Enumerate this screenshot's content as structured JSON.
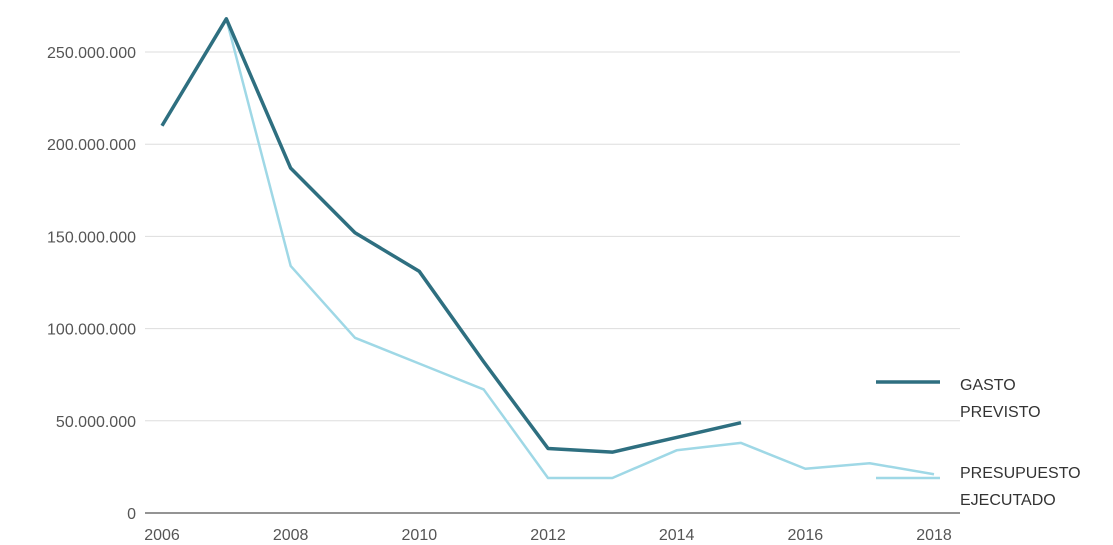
{
  "chart_data": {
    "type": "line",
    "x": [
      2006,
      2007,
      2008,
      2009,
      2010,
      2011,
      2012,
      2013,
      2014,
      2015,
      2016,
      2017,
      2018
    ],
    "x_ticks": [
      "2006",
      "2008",
      "2010",
      "2012",
      "2014",
      "2016",
      "2018"
    ],
    "y_ticks": [
      "0",
      "50.000.000",
      "100.000.000",
      "150.000.000",
      "200.000.000",
      "250.000.000"
    ],
    "ylim": [
      0,
      250000000
    ],
    "xlim": [
      2006,
      2018
    ],
    "grid": true,
    "legend_position": "right",
    "series": [
      {
        "name_lines": [
          "GASTO",
          "PREVISTO"
        ],
        "color": "#2e6f80",
        "values": [
          210000000,
          268000000,
          187000000,
          152000000,
          131000000,
          82000000,
          35000000,
          33000000,
          41000000,
          49000000,
          null,
          null,
          null
        ]
      },
      {
        "name_lines": [
          "PRESUPUESTO",
          "EJECUTADO"
        ],
        "color": "#9fd8e6",
        "values": [
          210000000,
          268000000,
          134000000,
          95000000,
          81000000,
          67000000,
          19000000,
          19000000,
          34000000,
          38000000,
          24000000,
          27000000,
          21000000
        ]
      }
    ]
  }
}
